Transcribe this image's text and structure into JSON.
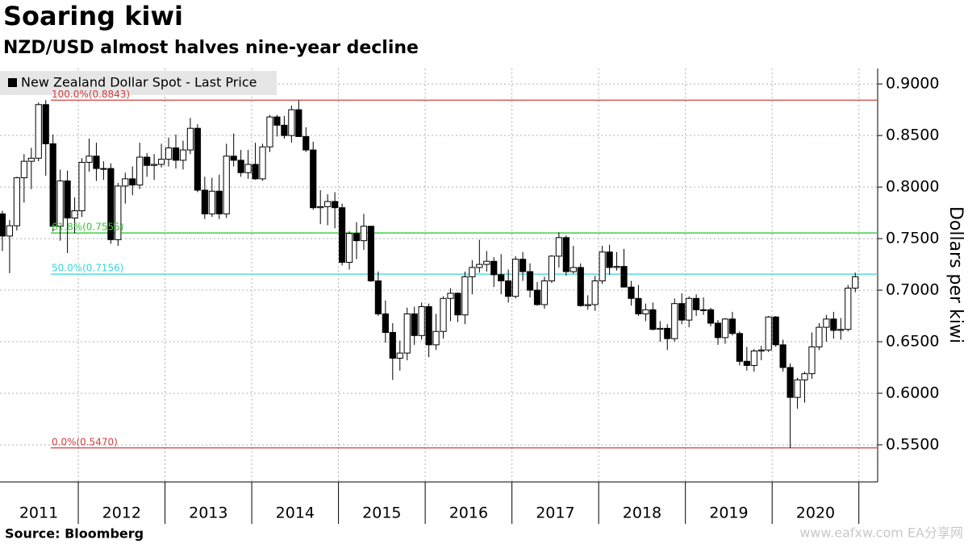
{
  "chart_data": {
    "type": "candlestick",
    "title": "Soaring kiwi",
    "subtitle": "NZD/USD almost halves nine-year decline",
    "source": "Source:  Bloomberg",
    "watermark": "www.eafxw.com  EA分享网",
    "y_axis_label": "Dollars per kiwi",
    "legend": "New Zealand Dollar Spot - Last Price",
    "up_color": "#ffffff",
    "down_color": "#000000",
    "grid": true,
    "ylim": [
      0.514,
      0.915
    ],
    "yticks": [
      {
        "value": 0.55,
        "label": "0.5500"
      },
      {
        "value": 0.6,
        "label": "0.6000"
      },
      {
        "value": 0.65,
        "label": "0.6500"
      },
      {
        "value": 0.7,
        "label": "0.7000"
      },
      {
        "value": 0.75,
        "label": "0.7500"
      },
      {
        "value": 0.8,
        "label": "0.8000"
      },
      {
        "value": 0.85,
        "label": "0.8500"
      },
      {
        "value": 0.9,
        "label": "0.9000"
      }
    ],
    "levels": [
      {
        "label": "100.0%(0.8843)",
        "value": 0.8843,
        "color": "#d04040"
      },
      {
        "label": "61.8%(0.7555)",
        "value": 0.7555,
        "color": "#33cc33"
      },
      {
        "label": "50.0%(0.7156)",
        "value": 0.7156,
        "color": "#33d6d6"
      },
      {
        "label": "0.0%(0.5470)",
        "value": 0.547,
        "color": "#d04040"
      }
    ],
    "categories": [
      "2011",
      null,
      null,
      null,
      null,
      null,
      null,
      null,
      null,
      null,
      null,
      null,
      "2012",
      null,
      null,
      null,
      null,
      null,
      null,
      null,
      null,
      null,
      null,
      null,
      "2013",
      null,
      null,
      null,
      null,
      null,
      null,
      null,
      null,
      null,
      null,
      null,
      "2014",
      null,
      null,
      null,
      null,
      null,
      null,
      null,
      null,
      null,
      null,
      null,
      "2015",
      null,
      null,
      null,
      null,
      null,
      null,
      null,
      null,
      null,
      null,
      null,
      "2016",
      null,
      null,
      null,
      null,
      null,
      null,
      null,
      null,
      null,
      null,
      null,
      "2017",
      null,
      null,
      null,
      null,
      null,
      null,
      null,
      null,
      null,
      null,
      null,
      "2018",
      null,
      null,
      null,
      null,
      null,
      null,
      null,
      null,
      null,
      null,
      null,
      "2019",
      null,
      null,
      null,
      null,
      null,
      null,
      null,
      null,
      null,
      null,
      null,
      "2020",
      null,
      null,
      null,
      null,
      null,
      null,
      null,
      null,
      null,
      null,
      null
    ],
    "open": [
      0.778,
      0.774,
      0.7525,
      0.7625,
      0.809,
      0.825,
      0.828,
      0.88,
      0.842,
      0.762,
      0.806,
      0.77,
      0.777,
      0.824,
      0.83,
      0.818,
      0.818,
      0.749,
      0.801,
      0.808,
      0.802,
      0.829,
      0.821,
      0.822,
      0.827,
      0.838,
      0.826,
      0.836,
      0.857,
      0.797,
      0.774,
      0.796,
      0.774,
      0.83,
      0.826,
      0.814,
      0.822,
      0.808,
      0.839,
      0.868,
      0.86,
      0.85,
      0.875,
      0.849,
      0.836,
      0.78,
      0.781,
      0.786,
      0.78,
      0.727,
      0.755,
      0.748,
      0.762,
      0.709,
      0.677,
      0.659,
      0.634,
      0.639,
      0.677,
      0.656,
      0.684,
      0.647,
      0.66,
      0.692,
      0.697,
      0.676,
      0.713,
      0.722,
      0.725,
      0.728,
      0.715,
      0.709,
      0.694,
      0.73,
      0.718,
      0.7,
      0.686,
      0.709,
      0.733,
      0.751,
      0.718,
      0.722,
      0.685,
      0.686,
      0.709,
      0.737,
      0.722,
      0.723,
      0.703,
      0.692,
      0.677,
      0.681,
      0.662,
      0.663,
      0.653,
      0.687,
      0.671,
      0.692,
      0.681,
      0.681,
      0.668,
      0.654,
      0.672,
      0.658,
      0.631,
      0.627,
      0.641,
      0.642,
      0.674,
      0.647,
      0.625,
      0.596,
      0.613,
      0.619,
      0.645,
      0.664,
      0.672,
      0.661,
      0.662,
      0.702
    ],
    "high": [
      0.79,
      0.777,
      0.768,
      0.81,
      0.832,
      0.838,
      0.882,
      0.8843,
      0.851,
      0.817,
      0.816,
      0.79,
      0.828,
      0.847,
      0.843,
      0.825,
      0.823,
      0.804,
      0.814,
      0.82,
      0.843,
      0.833,
      0.832,
      0.842,
      0.848,
      0.851,
      0.845,
      0.867,
      0.861,
      0.81,
      0.809,
      0.812,
      0.842,
      0.852,
      0.836,
      0.836,
      0.843,
      0.842,
      0.87,
      0.87,
      0.869,
      0.879,
      0.884,
      0.858,
      0.844,
      0.797,
      0.793,
      0.795,
      0.784,
      0.757,
      0.766,
      0.774,
      0.762,
      0.718,
      0.69,
      0.668,
      0.651,
      0.683,
      0.684,
      0.688,
      0.687,
      0.677,
      0.694,
      0.702,
      0.698,
      0.718,
      0.729,
      0.749,
      0.738,
      0.732,
      0.735,
      0.72,
      0.733,
      0.737,
      0.726,
      0.708,
      0.713,
      0.734,
      0.756,
      0.753,
      0.743,
      0.726,
      0.695,
      0.714,
      0.743,
      0.744,
      0.737,
      0.74,
      0.709,
      0.705,
      0.687,
      0.688,
      0.67,
      0.667,
      0.692,
      0.697,
      0.694,
      0.696,
      0.693,
      0.683,
      0.671,
      0.673,
      0.679,
      0.66,
      0.645,
      0.643,
      0.646,
      0.675,
      0.675,
      0.652,
      0.629,
      0.615,
      0.621,
      0.659,
      0.668,
      0.676,
      0.679,
      0.673,
      0.705,
      0.717
    ],
    "low": [
      0.76,
      0.738,
      0.7165,
      0.758,
      0.785,
      0.798,
      0.825,
      0.811,
      0.757,
      0.748,
      0.736,
      0.755,
      0.771,
      0.815,
      0.806,
      0.807,
      0.745,
      0.743,
      0.784,
      0.792,
      0.798,
      0.81,
      0.807,
      0.819,
      0.82,
      0.818,
      0.817,
      0.832,
      0.795,
      0.769,
      0.771,
      0.769,
      0.77,
      0.82,
      0.81,
      0.808,
      0.807,
      0.806,
      0.834,
      0.849,
      0.847,
      0.843,
      0.849,
      0.834,
      0.778,
      0.764,
      0.763,
      0.76,
      0.724,
      0.72,
      0.73,
      0.739,
      0.708,
      0.675,
      0.649,
      0.613,
      0.622,
      0.632,
      0.647,
      0.652,
      0.635,
      0.642,
      0.653,
      0.67,
      0.669,
      0.667,
      0.696,
      0.717,
      0.718,
      0.703,
      0.696,
      0.688,
      0.692,
      0.709,
      0.693,
      0.685,
      0.682,
      0.707,
      0.722,
      0.714,
      0.716,
      0.684,
      0.681,
      0.68,
      0.706,
      0.715,
      0.719,
      0.703,
      0.685,
      0.675,
      0.67,
      0.661,
      0.65,
      0.642,
      0.65,
      0.667,
      0.664,
      0.675,
      0.676,
      0.665,
      0.647,
      0.648,
      0.656,
      0.627,
      0.622,
      0.621,
      0.632,
      0.64,
      0.645,
      0.621,
      0.547,
      0.585,
      0.591,
      0.614,
      0.642,
      0.65,
      0.653,
      0.652,
      0.66,
      0.698
    ],
    "close": [
      0.774,
      0.7525,
      0.7625,
      0.809,
      0.825,
      0.828,
      0.88,
      0.842,
      0.762,
      0.806,
      0.77,
      0.777,
      0.824,
      0.83,
      0.818,
      0.818,
      0.749,
      0.801,
      0.808,
      0.802,
      0.829,
      0.821,
      0.822,
      0.827,
      0.838,
      0.826,
      0.836,
      0.857,
      0.797,
      0.774,
      0.796,
      0.774,
      0.83,
      0.826,
      0.814,
      0.822,
      0.808,
      0.839,
      0.868,
      0.86,
      0.85,
      0.875,
      0.849,
      0.836,
      0.78,
      0.781,
      0.786,
      0.78,
      0.727,
      0.755,
      0.748,
      0.762,
      0.709,
      0.677,
      0.659,
      0.634,
      0.639,
      0.677,
      0.656,
      0.684,
      0.647,
      0.66,
      0.692,
      0.697,
      0.676,
      0.713,
      0.722,
      0.725,
      0.728,
      0.715,
      0.709,
      0.694,
      0.73,
      0.718,
      0.7,
      0.686,
      0.709,
      0.733,
      0.751,
      0.718,
      0.722,
      0.685,
      0.686,
      0.709,
      0.737,
      0.722,
      0.723,
      0.703,
      0.692,
      0.677,
      0.681,
      0.662,
      0.663,
      0.653,
      0.687,
      0.671,
      0.692,
      0.681,
      0.681,
      0.668,
      0.654,
      0.672,
      0.658,
      0.631,
      0.627,
      0.641,
      0.642,
      0.674,
      0.647,
      0.625,
      0.596,
      0.613,
      0.619,
      0.645,
      0.664,
      0.672,
      0.661,
      0.662,
      0.702,
      0.713
    ]
  }
}
